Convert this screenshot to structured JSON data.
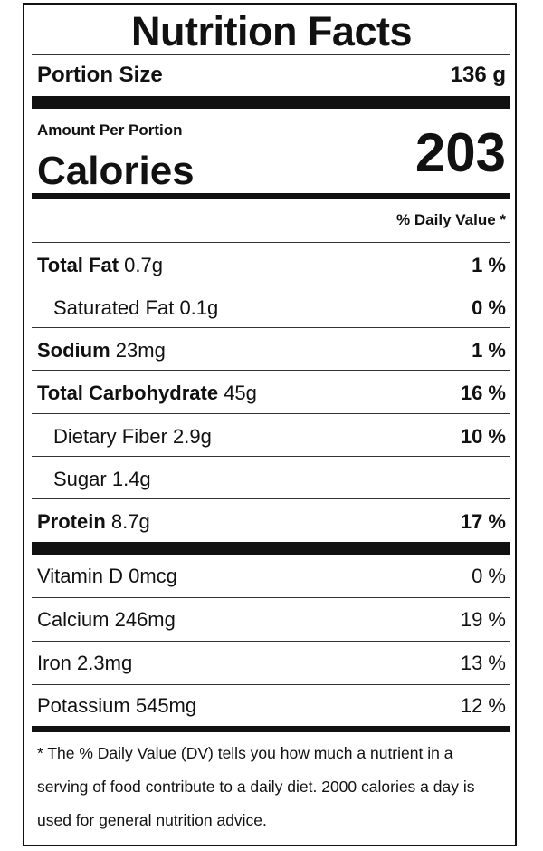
{
  "title": "Nutrition Facts",
  "portion": {
    "label": "Portion Size",
    "value": "136 g"
  },
  "amount_per_portion": "Amount Per Portion",
  "calories": {
    "label": "Calories",
    "value": "203"
  },
  "daily_value_header": "% Daily Value *",
  "nutrients": [
    {
      "name": "Total Fat",
      "amount": "0.7g",
      "dv": "1 %"
    },
    {
      "name": "Saturated Fat",
      "amount": "0.1g",
      "dv": "0 %"
    },
    {
      "name": "Sodium",
      "amount": "23mg",
      "dv": "1 %"
    },
    {
      "name": "Total Carbohydrate",
      "amount": "45g",
      "dv": "16 %"
    },
    {
      "name": "Dietary Fiber",
      "amount": "2.9g",
      "dv": "10 %"
    },
    {
      "name": "Sugar",
      "amount": "1.4g",
      "dv": ""
    },
    {
      "name": "Protein",
      "amount": "8.7g",
      "dv": "17 %"
    }
  ],
  "vitamins": [
    {
      "name": "Vitamin D",
      "amount": "0mcg",
      "dv": "0 %"
    },
    {
      "name": "Calcium",
      "amount": "246mg",
      "dv": "19 %"
    },
    {
      "name": "Iron",
      "amount": "2.3mg",
      "dv": "13 %"
    },
    {
      "name": "Potassium",
      "amount": "545mg",
      "dv": "12 %"
    }
  ],
  "footnote": "* The % Daily Value (DV) tells you how much a nutrient in a serving of food contribute to a daily diet. 2000 calories a day is used for general nutrition advice."
}
